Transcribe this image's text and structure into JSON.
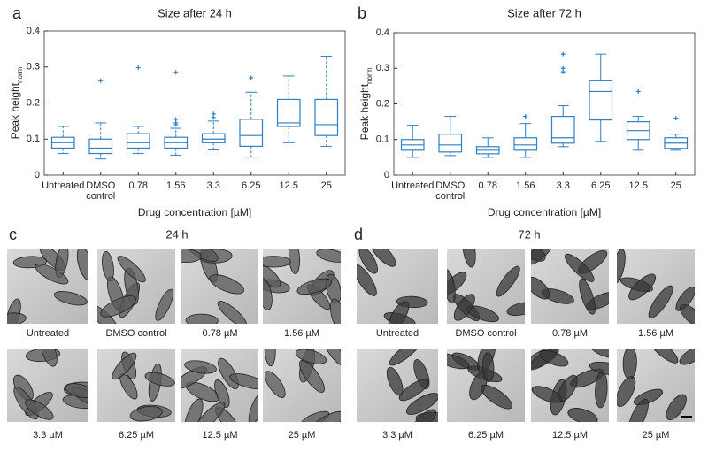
{
  "chart_data": [
    {
      "type": "box",
      "letter": "a",
      "title": "Size after 24 h",
      "ylabel": "Peak height",
      "ylabel_sub": "norm",
      "xlabel": "Drug concentration [µM]",
      "color": "#2f7fc1",
      "whisker_dashed": true,
      "categories": [
        "Untreated",
        "DMSO control",
        "0.78",
        "1.56",
        "3.3",
        "6.25",
        "12.5",
        "25"
      ],
      "boxes": [
        {
          "whislo": 0.06,
          "q1": 0.075,
          "med": 0.09,
          "q3": 0.105,
          "whishi": 0.135,
          "fliers": []
        },
        {
          "whislo": 0.045,
          "q1": 0.06,
          "med": 0.075,
          "q3": 0.1,
          "whishi": 0.145,
          "fliers": [
            0.262
          ]
        },
        {
          "whislo": 0.06,
          "q1": 0.075,
          "med": 0.09,
          "q3": 0.115,
          "whishi": 0.135,
          "fliers": [
            0.298
          ]
        },
        {
          "whislo": 0.055,
          "q1": 0.075,
          "med": 0.09,
          "q3": 0.105,
          "whishi": 0.13,
          "fliers": [
            0.14,
            0.145,
            0.155,
            0.285
          ]
        },
        {
          "whislo": 0.07,
          "q1": 0.09,
          "med": 0.1,
          "q3": 0.115,
          "whishi": 0.15,
          "fliers": [
            0.16,
            0.17
          ]
        },
        {
          "whislo": 0.05,
          "q1": 0.08,
          "med": 0.11,
          "q3": 0.155,
          "whishi": 0.23,
          "fliers": [
            0.27
          ]
        },
        {
          "whislo": 0.09,
          "q1": 0.135,
          "med": 0.145,
          "q3": 0.21,
          "whishi": 0.275,
          "fliers": []
        },
        {
          "whislo": 0.08,
          "q1": 0.11,
          "med": 0.14,
          "q3": 0.21,
          "whishi": 0.33,
          "fliers": []
        }
      ],
      "ylim": [
        0,
        0.4
      ],
      "yticks": [
        0,
        0.1,
        0.2,
        0.3,
        0.4
      ]
    },
    {
      "type": "box",
      "letter": "b",
      "title": "Size after 72 h",
      "ylabel": "Peak height",
      "ylabel_sub": "norm",
      "xlabel": "Drug concentration [µM]",
      "color": "#2f7fc1",
      "whisker_dashed": false,
      "categories": [
        "Untreated",
        "DMSO control",
        "0.78",
        "1.56",
        "3.3",
        "6.25",
        "12.5",
        "25"
      ],
      "boxes": [
        {
          "whislo": 0.05,
          "q1": 0.07,
          "med": 0.085,
          "q3": 0.1,
          "whishi": 0.14,
          "fliers": []
        },
        {
          "whislo": 0.055,
          "q1": 0.065,
          "med": 0.085,
          "q3": 0.115,
          "whishi": 0.165,
          "fliers": []
        },
        {
          "whislo": 0.05,
          "q1": 0.06,
          "med": 0.07,
          "q3": 0.08,
          "whishi": 0.105,
          "fliers": []
        },
        {
          "whislo": 0.05,
          "q1": 0.07,
          "med": 0.085,
          "q3": 0.105,
          "whishi": 0.145,
          "fliers": [
            0.165
          ]
        },
        {
          "whislo": 0.08,
          "q1": 0.09,
          "med": 0.105,
          "q3": 0.165,
          "whishi": 0.195,
          "fliers": [
            0.29,
            0.3,
            0.34
          ]
        },
        {
          "whislo": 0.095,
          "q1": 0.155,
          "med": 0.235,
          "q3": 0.265,
          "whishi": 0.34,
          "fliers": []
        },
        {
          "whislo": 0.07,
          "q1": 0.1,
          "med": 0.125,
          "q3": 0.15,
          "whishi": 0.165,
          "fliers": [
            0.235
          ]
        },
        {
          "whislo": 0.07,
          "q1": 0.075,
          "med": 0.09,
          "q3": 0.105,
          "whishi": 0.115,
          "fliers": [
            0.16
          ]
        }
      ],
      "ylim": [
        0,
        0.4
      ],
      "yticks": [
        0,
        0.1,
        0.2,
        0.3,
        0.4
      ]
    }
  ],
  "panels": [
    {
      "letter": "c",
      "title": "24 h",
      "images": [
        "Untreated",
        "DMSO control",
        "0.78 µM",
        "1.56 µM",
        "3.3 µM",
        "6.25 µM",
        "12.5 µM",
        "25 µM"
      ]
    },
    {
      "letter": "d",
      "title": "72 h",
      "images": [
        "Untreated",
        "DMSO control",
        "0.78 µM",
        "1.56 µM",
        "3.3 µM",
        "6.25 µM",
        "12.5 µM",
        "25 µM"
      ]
    }
  ]
}
